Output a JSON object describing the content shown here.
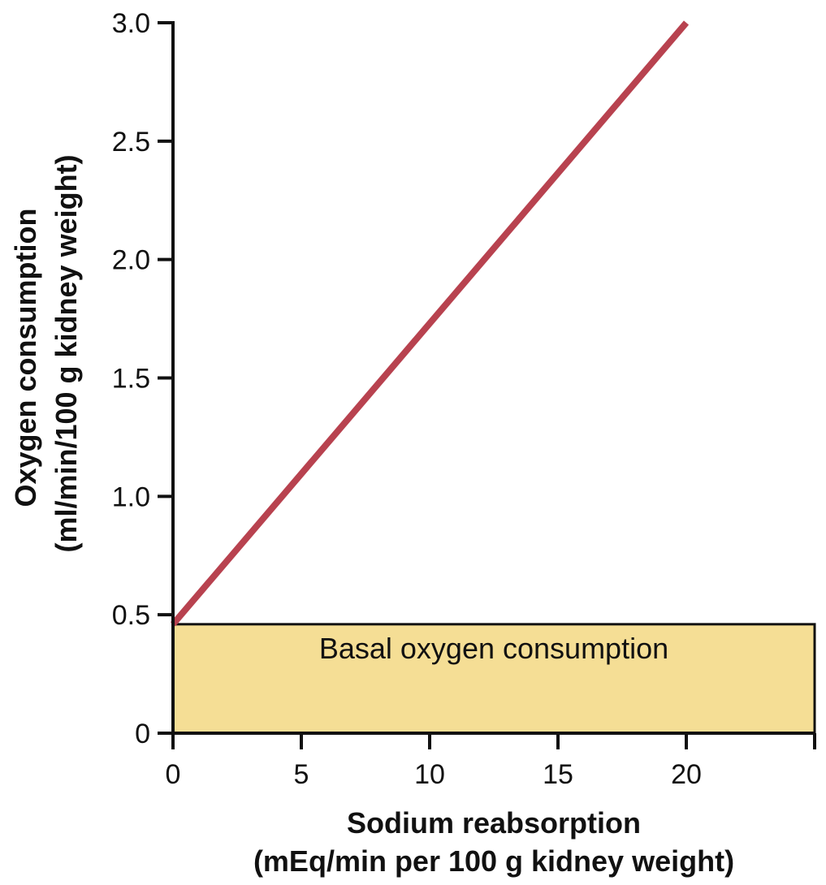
{
  "chart_data": {
    "type": "line",
    "title": "",
    "xlabel": [
      "Sodium reabsorption",
      "(mEq/min per 100 g kidney weight)"
    ],
    "ylabel": [
      "Oxygen consumption",
      "(ml/min/100 g kidney weight)"
    ],
    "xlim": [
      0,
      25
    ],
    "ylim": [
      0,
      3.0
    ],
    "x_ticks": [
      0,
      5,
      10,
      15,
      20
    ],
    "x_tick_labels": [
      "0",
      "5",
      "10",
      "15",
      "20"
    ],
    "y_ticks": [
      0,
      0.5,
      1.0,
      1.5,
      2.0,
      2.5,
      3.0
    ],
    "y_tick_labels": [
      "0",
      "0.5",
      "1.0",
      "1.5",
      "2.0",
      "2.5",
      "3.0"
    ],
    "grid": false,
    "legend": "none",
    "series": [
      {
        "x": [
          0,
          20
        ],
        "y": [
          0.46,
          3.0
        ],
        "color": "#b8424f"
      }
    ],
    "regions": [
      {
        "label": "Basal oxygen consumption",
        "x_range": [
          0,
          25
        ],
        "y_range": [
          0,
          0.46
        ],
        "fill": "#f5de95",
        "stroke": "#111111"
      }
    ]
  }
}
